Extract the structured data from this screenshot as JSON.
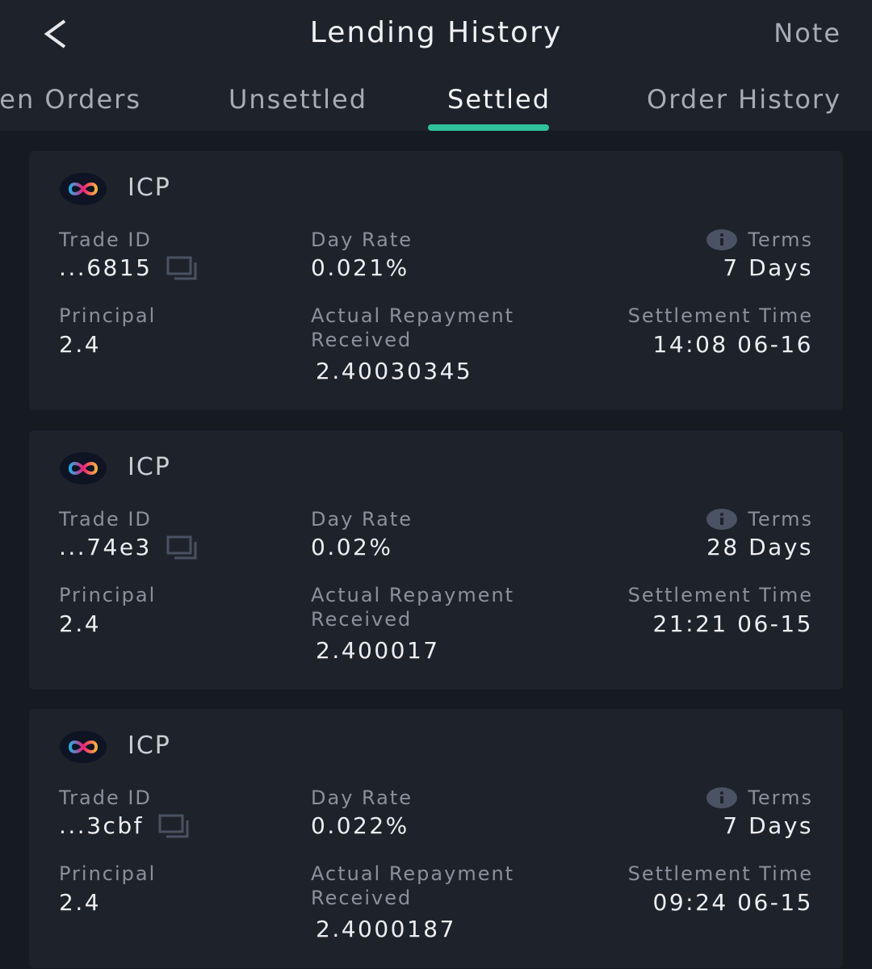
{
  "header": {
    "title": "Lending History",
    "action": "Note"
  },
  "tabs": {
    "items": [
      "Open Orders",
      "Unsettled",
      "Settled",
      "Order History"
    ],
    "active": 2
  },
  "cards": [
    {
      "coin": "ICP",
      "fields": [
        {
          "label": "Trade ID",
          "value": "...6815"
        },
        {
          "label": "Day Rate",
          "value": "0.021%"
        },
        {
          "label": "Terms",
          "value": "7 Days"
        },
        {
          "label": "Principal",
          "value": "2.4"
        },
        {
          "label": "Actual Repayment Received",
          "value": "2.40030345"
        },
        {
          "label": "Settlement Time",
          "value": "14:08 06-16"
        }
      ]
    },
    {
      "coin": "ICP",
      "fields": [
        {
          "label": "Trade ID",
          "value": "...74e3"
        },
        {
          "label": "Day Rate",
          "value": "0.02%"
        },
        {
          "label": "Terms",
          "value": "28 Days"
        },
        {
          "label": "Principal",
          "value": "2.4"
        },
        {
          "label": "Actual Repayment Received",
          "value": "2.400017"
        },
        {
          "label": "Settlement Time",
          "value": "21:21 06-15"
        }
      ]
    },
    {
      "coin": "ICP",
      "fields": [
        {
          "label": "Trade ID",
          "value": "...3cbf"
        },
        {
          "label": "Day Rate",
          "value": "0.022%"
        },
        {
          "label": "Terms",
          "value": "7 Days"
        },
        {
          "label": "Principal",
          "value": "2.4"
        },
        {
          "label": "Actual Repayment Received",
          "value": "2.4000187"
        },
        {
          "label": "Settlement Time",
          "value": "09:24 06-15"
        }
      ]
    }
  ]
}
